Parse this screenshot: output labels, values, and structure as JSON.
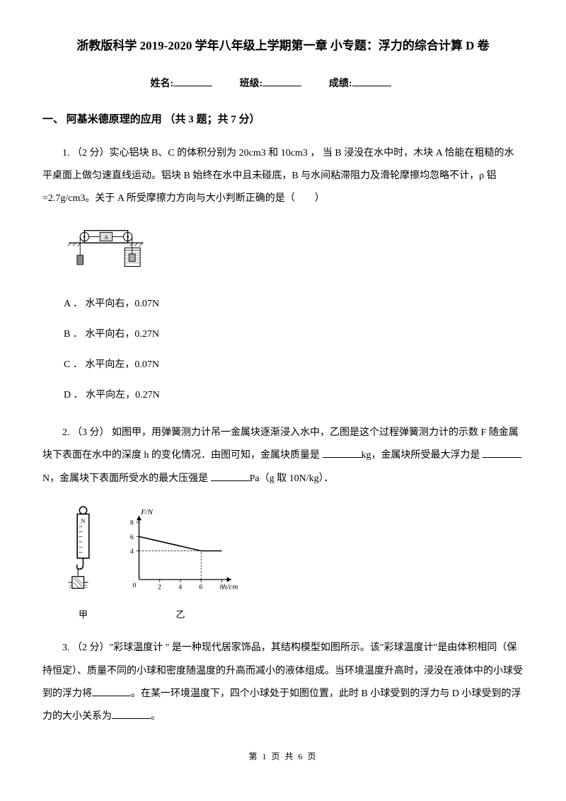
{
  "title": "浙教版科学 2019-2020 学年八年级上学期第一章 小专题：浮力的综合计算 D 卷",
  "info": {
    "name_label": "姓名:",
    "class_label": "班级:",
    "score_label": "成绩:"
  },
  "section1": {
    "header": "一、 阿基米德原理的应用 （共 3 题；共 7 分）"
  },
  "q1": {
    "text": "1. （2 分）实心铝块 B、C 的体积分别为 20cm3 和 10cm3 ， 当 B 浸没在水中时，木块 A 恰能在粗糙的水平桌面上做匀速直线运动。铝块 B 始终在水中且未碰底，B 与水间粘滞阻力及滑轮摩擦均忽略不计，ρ 铝=2.7g/cm3。关于 A 所受摩擦力方向与大小判断正确的是（　　）",
    "options": {
      "a": "A ． 水平向右，0.07N",
      "b": "B ． 水平向右，0.27N",
      "c": "C ． 水平向左，0.07N",
      "d": "D ． 水平向左，0.27N"
    }
  },
  "q2": {
    "text_p1": "2. （3 分） 如图甲，用弹簧测力计吊一金属块逐渐浸入水中，乙图是这个过程弹簧测力计的示数 F 随金属块下表面在水中的深度 h 的变化情况．由图可知，金属块质量是  ",
    "text_p2": "kg，金属块所受最大浮力是  ",
    "text_p3": "N，金属块下表面所受水的最大压强是   ",
    "text_p4": "Pa（g 取 10N/kg）．",
    "label_left": "甲",
    "label_right": "乙",
    "chart": {
      "ylabel": "F/N",
      "xlabel": "h/cm",
      "xlim": [
        0,
        8
      ],
      "ylim": [
        0,
        8
      ],
      "xticks": [
        0,
        2,
        4,
        6,
        8
      ],
      "yticks": [
        4,
        6,
        8
      ],
      "line_points": [
        {
          "x": 0,
          "y": 6
        },
        {
          "x": 6,
          "y": 4
        },
        {
          "x": 8,
          "y": 4
        }
      ],
      "line_color": "#000000",
      "axis_color": "#000000",
      "background": "#ffffff"
    }
  },
  "q3": {
    "text_p1": "3. （2 分）\"彩球温度计 \" 是一种现代居家饰品，其结构模型如图所示。该\"彩球温度计\"是由体积相同（保持恒定）、质量不同的小球和密度随温度的升高而减小的液体组成。当环境温度升高时，浸没在液体中的小球受到的浮力将",
    "text_p2": "。在某一环境温度下，四个小球处于如图位置，此时  B 小球受到的浮力与  D 小球受到的浮力的大小关系为",
    "text_p3": "。"
  },
  "footer": "第 1 页 共 6 页"
}
